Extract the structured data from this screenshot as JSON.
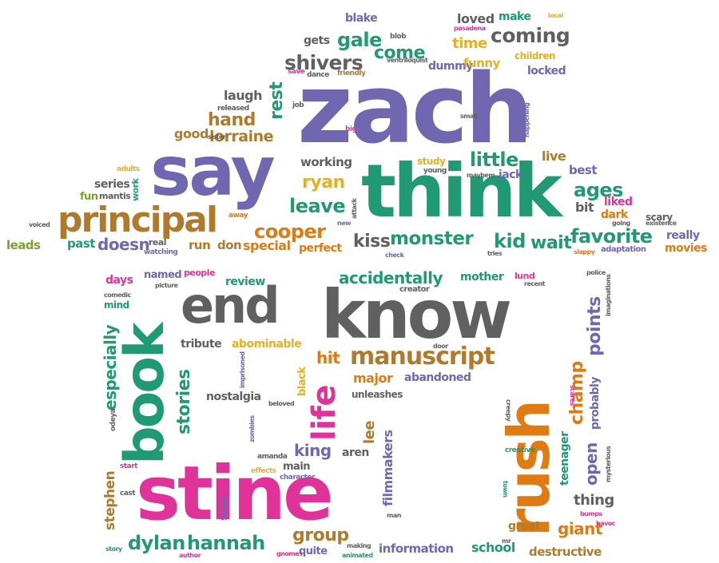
{
  "words": [
    {
      "text": "zach",
      "color": "purple"
    },
    {
      "text": "say",
      "color": "purple"
    },
    {
      "text": "think",
      "color": "green"
    },
    {
      "text": "principal",
      "color": "brown"
    },
    {
      "text": "know",
      "color": "gray"
    },
    {
      "text": "end",
      "color": "gray"
    },
    {
      "text": "stine",
      "color": "pink"
    },
    {
      "text": "book",
      "color": "green"
    },
    {
      "text": "rush",
      "color": "orange"
    },
    {
      "text": "life",
      "color": "pink"
    },
    {
      "text": "manuscript",
      "color": "brown"
    },
    {
      "text": "monster",
      "color": "green"
    },
    {
      "text": "coming",
      "color": "gray"
    },
    {
      "text": "shivers",
      "color": "gray"
    },
    {
      "text": "gale",
      "color": "green"
    },
    {
      "text": "come",
      "color": "green"
    },
    {
      "text": "little",
      "color": "green"
    },
    {
      "text": "leave",
      "color": "green"
    },
    {
      "text": "ryan",
      "color": "yellow"
    },
    {
      "text": "cooper",
      "color": "orange"
    },
    {
      "text": "kiss",
      "color": "gray"
    },
    {
      "text": "favorite",
      "color": "green"
    },
    {
      "text": "kid",
      "color": "green"
    },
    {
      "text": "wait",
      "color": "green"
    },
    {
      "text": "ages",
      "color": "green"
    },
    {
      "text": "hand",
      "color": "brown"
    },
    {
      "text": "lorraine",
      "color": "brown"
    },
    {
      "text": "laugh",
      "color": "gray"
    },
    {
      "text": "good",
      "color": "brown"
    },
    {
      "text": "rest",
      "color": "green"
    },
    {
      "text": "doesn",
      "color": "purple"
    },
    {
      "text": "past",
      "color": "green"
    },
    {
      "text": "series",
      "color": "gray"
    },
    {
      "text": "fun",
      "color": "green"
    },
    {
      "text": "mantis",
      "color": "gray"
    },
    {
      "text": "leads",
      "color": "green"
    },
    {
      "text": "voiced",
      "color": "gray"
    },
    {
      "text": "adults",
      "color": "yellow"
    },
    {
      "text": "work",
      "color": "green"
    },
    {
      "text": "real",
      "color": "gray"
    },
    {
      "text": "watching",
      "color": "purple"
    },
    {
      "text": "run",
      "color": "brown"
    },
    {
      "text": "don",
      "color": "brown"
    },
    {
      "text": "special",
      "color": "orange"
    },
    {
      "text": "perfect",
      "color": "orange"
    },
    {
      "text": "away",
      "color": "orange"
    },
    {
      "text": "new",
      "color": "purple"
    },
    {
      "text": "attack",
      "color": "gray"
    },
    {
      "text": "working",
      "color": "gray"
    },
    {
      "text": "sister",
      "color": "gray"
    },
    {
      "text": "released",
      "color": "gray"
    },
    {
      "text": "job",
      "color": "gray"
    },
    {
      "text": "save",
      "color": "pink"
    },
    {
      "text": "dance",
      "color": "gray"
    },
    {
      "text": "friendly",
      "color": "brown"
    },
    {
      "text": "gets",
      "color": "gray"
    },
    {
      "text": "ventriloquist",
      "color": "gray"
    },
    {
      "text": "blob",
      "color": "gray"
    },
    {
      "text": "blake",
      "color": "purple"
    },
    {
      "text": "loved",
      "color": "gray"
    },
    {
      "text": "make",
      "color": "green"
    },
    {
      "text": "local",
      "color": "yellow"
    },
    {
      "text": "pasadena",
      "color": "pink"
    },
    {
      "text": "time",
      "color": "yellow"
    },
    {
      "text": "dummy",
      "color": "purple"
    },
    {
      "text": "funny",
      "color": "yellow"
    },
    {
      "text": "children",
      "color": "yellow"
    },
    {
      "text": "locked",
      "color": "purple"
    },
    {
      "text": "small",
      "color": "gray"
    },
    {
      "text": "big",
      "color": "pink"
    },
    {
      "text": "happening",
      "color": "purple"
    },
    {
      "text": "study",
      "color": "yellow"
    },
    {
      "text": "young",
      "color": "gray"
    },
    {
      "text": "mayhem",
      "color": "gray"
    },
    {
      "text": "jack",
      "color": "purple"
    },
    {
      "text": "live",
      "color": "brown"
    },
    {
      "text": "best",
      "color": "purple"
    },
    {
      "text": "liked",
      "color": "pink"
    },
    {
      "text": "bit",
      "color": "gray"
    },
    {
      "text": "dark",
      "color": "orange"
    },
    {
      "text": "scary",
      "color": "gray"
    },
    {
      "text": "existence",
      "color": "gray"
    },
    {
      "text": "going",
      "color": "gray"
    },
    {
      "text": "really",
      "color": "purple"
    },
    {
      "text": "movies",
      "color": "orange"
    },
    {
      "text": "slappy",
      "color": "orange"
    },
    {
      "text": "adaptation",
      "color": "purple"
    },
    {
      "text": "tries",
      "color": "gray"
    },
    {
      "text": "check",
      "color": "purple"
    },
    {
      "text": "days",
      "color": "pink"
    },
    {
      "text": "named",
      "color": "purple"
    },
    {
      "text": "people",
      "color": "pink"
    },
    {
      "text": "review",
      "color": "green"
    },
    {
      "text": "accidentally",
      "color": "green"
    },
    {
      "text": "mother",
      "color": "green"
    },
    {
      "text": "lund",
      "color": "pink"
    },
    {
      "text": "police",
      "color": "gray"
    },
    {
      "text": "comedic",
      "color": "gray"
    },
    {
      "text": "picture",
      "color": "gray"
    },
    {
      "text": "mind",
      "color": "green"
    },
    {
      "text": "creator",
      "color": "gray"
    },
    {
      "text": "recent",
      "color": "gray"
    },
    {
      "text": "imaginations",
      "color": "gray"
    },
    {
      "text": "points",
      "color": "purple"
    },
    {
      "text": "champ",
      "color": "orange"
    },
    {
      "text": "probably",
      "color": "purple"
    },
    {
      "text": "teenager",
      "color": "green"
    },
    {
      "text": "open",
      "color": "purple"
    },
    {
      "text": "thing",
      "color": "gray"
    },
    {
      "text": "giant",
      "color": "orange"
    },
    {
      "text": "great",
      "color": "brown"
    },
    {
      "text": "destructive",
      "color": "brown"
    },
    {
      "text": "school",
      "color": "green"
    },
    {
      "text": "scares",
      "color": "pink"
    },
    {
      "text": "creepy",
      "color": "gray"
    },
    {
      "text": "mysterious",
      "color": "gray"
    },
    {
      "text": "creative",
      "color": "green"
    },
    {
      "text": "town",
      "color": "green"
    },
    {
      "text": "bumps",
      "color": "pink"
    },
    {
      "text": "havoc",
      "color": "pink"
    },
    {
      "text": "mr",
      "color": "gray"
    },
    {
      "text": "door",
      "color": "gray"
    },
    {
      "text": "tribute",
      "color": "gray"
    },
    {
      "text": "abominable",
      "color": "yellow"
    },
    {
      "text": "hit",
      "color": "orange"
    },
    {
      "text": "major",
      "color": "orange"
    },
    {
      "text": "abandoned",
      "color": "purple"
    },
    {
      "text": "unleashes",
      "color": "gray"
    },
    {
      "text": "black",
      "color": "yellow"
    },
    {
      "text": "nostalgia",
      "color": "gray"
    },
    {
      "text": "beloved",
      "color": "gray"
    },
    {
      "text": "imprisoned",
      "color": "purple"
    },
    {
      "text": "stories",
      "color": "green"
    },
    {
      "text": "especially",
      "color": "green"
    },
    {
      "text": "odeya",
      "color": "gray"
    },
    {
      "text": "zombies",
      "color": "purple"
    },
    {
      "text": "lee",
      "color": "brown"
    },
    {
      "text": "filmmakers",
      "color": "purple"
    },
    {
      "text": "king",
      "color": "purple"
    },
    {
      "text": "aren",
      "color": "gray"
    },
    {
      "text": "amanda",
      "color": "gray"
    },
    {
      "text": "main",
      "color": "gray"
    },
    {
      "text": "effects",
      "color": "yellow"
    },
    {
      "text": "character",
      "color": "purple"
    },
    {
      "text": "sees",
      "color": "purple"
    },
    {
      "text": "start",
      "color": "pink"
    },
    {
      "text": "cast",
      "color": "gray"
    },
    {
      "text": "stephen",
      "color": "brown"
    },
    {
      "text": "group",
      "color": "brown"
    },
    {
      "text": "dylan",
      "color": "green"
    },
    {
      "text": "hannah",
      "color": "green"
    },
    {
      "text": "information",
      "color": "purple"
    },
    {
      "text": "quite",
      "color": "purple"
    },
    {
      "text": "making",
      "color": "gray"
    },
    {
      "text": "animated",
      "color": "green"
    },
    {
      "text": "gnomes",
      "color": "pink"
    },
    {
      "text": "man",
      "color": "gray"
    },
    {
      "text": "story",
      "color": "green"
    },
    {
      "text": "author",
      "color": "pink"
    }
  ]
}
